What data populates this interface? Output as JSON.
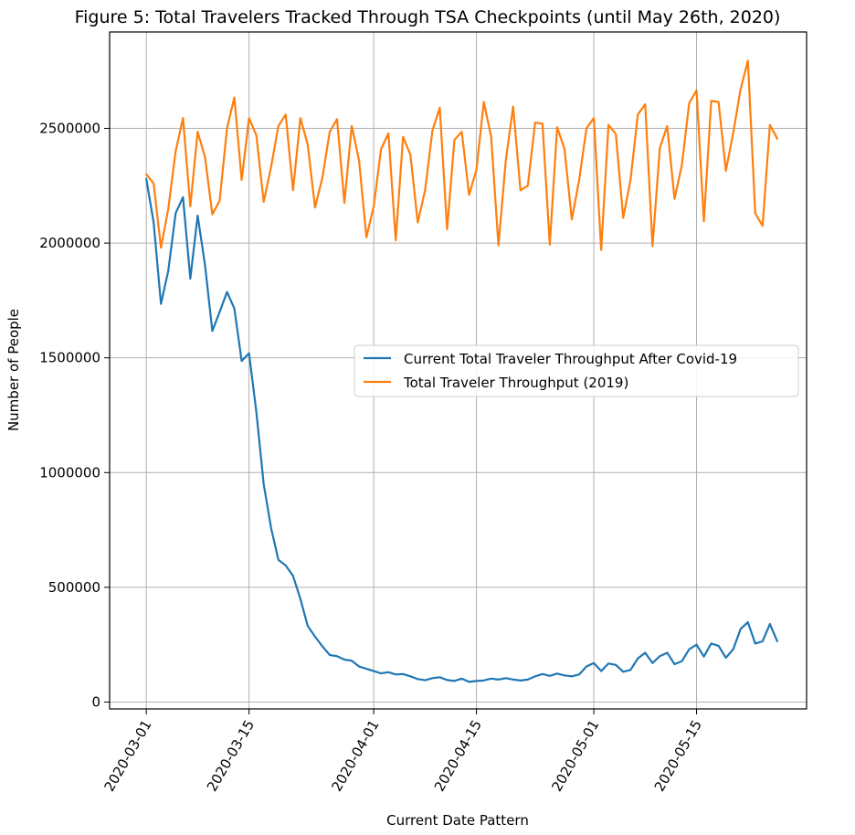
{
  "chart_data": {
    "type": "line",
    "title": "Figure 5: Total Travelers Tracked Through TSA Checkpoints (until May 26th, 2020)",
    "xlabel": "Current Date Pattern",
    "ylabel": "Number of People",
    "x_start": "2020-03-01",
    "x_tick_labels": [
      "2020-03-01",
      "2020-03-15",
      "2020-04-01",
      "2020-04-15",
      "2020-05-01",
      "2020-05-15"
    ],
    "y_ticks": [
      0,
      500000,
      1000000,
      1500000,
      2000000,
      2500000
    ],
    "y_tick_labels": [
      "0",
      "500000",
      "1000000",
      "1500000",
      "2000000",
      "2500000"
    ],
    "ylim": [
      -30000,
      2920000
    ],
    "xlim": [
      "2020-02-25",
      "2020-05-30"
    ],
    "grid": true,
    "legend_position": "center-right",
    "series": [
      {
        "name": "Current Total Traveler Throughput After Covid-19",
        "color": "#1f77b4",
        "values": [
          2280000,
          2090000,
          1735000,
          1880000,
          2130000,
          2200000,
          1845000,
          2120000,
          1905000,
          1617000,
          1700000,
          1787000,
          1715000,
          1486000,
          1520000,
          1265000,
          950000,
          760000,
          620000,
          595000,
          550000,
          450000,
          332000,
          285000,
          243000,
          205000,
          200000,
          185000,
          180000,
          155000,
          145000,
          135000,
          125000,
          130000,
          120000,
          122000,
          112000,
          100000,
          95000,
          104000,
          108000,
          96000,
          92000,
          102000,
          88000,
          92000,
          94000,
          102000,
          98000,
          104000,
          98000,
          94000,
          98000,
          112000,
          122000,
          114000,
          124000,
          116000,
          112000,
          120000,
          155000,
          170000,
          135000,
          168000,
          162000,
          132000,
          140000,
          190000,
          215000,
          170000,
          200000,
          215000,
          165000,
          178000,
          230000,
          250000,
          198000,
          255000,
          245000,
          193000,
          230000,
          318000,
          348000,
          255000,
          265000,
          340000,
          265000
        ],
        "x_offset_days": 0
      },
      {
        "name": "Total Traveler Throughput (2019)",
        "color": "#ff7f0e",
        "values": [
          2300000,
          2260000,
          1980000,
          2150000,
          2400000,
          2545000,
          2160000,
          2485000,
          2375000,
          2125000,
          2185000,
          2500000,
          2635000,
          2275000,
          2545000,
          2470000,
          2180000,
          2330000,
          2510000,
          2560000,
          2230000,
          2545000,
          2430000,
          2155000,
          2285000,
          2485000,
          2540000,
          2175000,
          2510000,
          2360000,
          2025000,
          2160000,
          2410000,
          2478000,
          2012000,
          2463000,
          2385000,
          2090000,
          2230000,
          2490000,
          2590000,
          2060000,
          2450000,
          2485000,
          2210000,
          2320000,
          2615000,
          2465000,
          1990000,
          2360000,
          2595000,
          2230000,
          2250000,
          2525000,
          2520000,
          1993000,
          2505000,
          2410000,
          2103000,
          2275000,
          2500000,
          2545000,
          1970000,
          2515000,
          2475000,
          2110000,
          2275000,
          2560000,
          2605000,
          1987000,
          2415000,
          2510000,
          2193000,
          2340000,
          2610000,
          2665000,
          2095000,
          2620000,
          2615000,
          2315000,
          2480000,
          2670000,
          2795000,
          2130000,
          2075000,
          2515000,
          2455000
        ],
        "x_offset_days": 0
      }
    ]
  }
}
